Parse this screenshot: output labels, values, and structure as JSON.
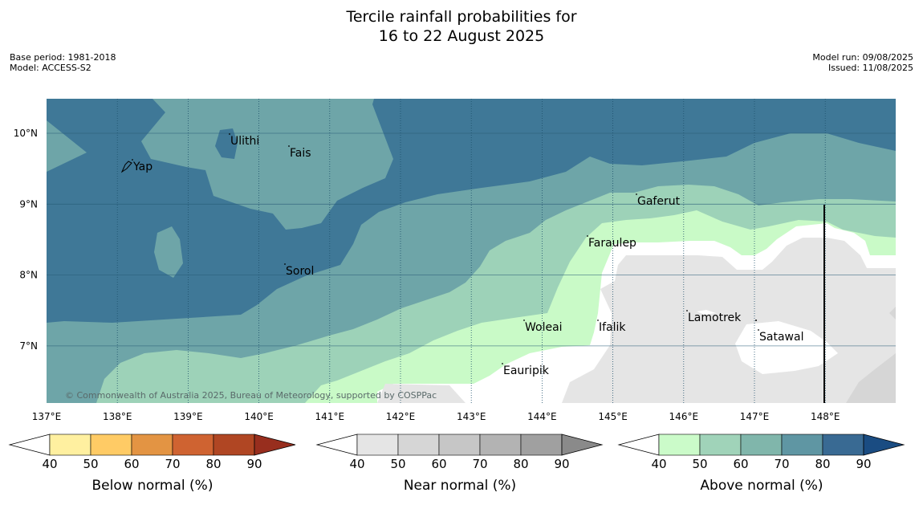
{
  "title": {
    "line1": "Tercile rainfall probabilities for",
    "line2": "16 to 22 August 2025"
  },
  "meta_left": {
    "base_period": "Base period: 1981-2018",
    "model": "Model: ACCESS-S2"
  },
  "meta_right": {
    "model_run": "Model run: 09/08/2025",
    "issued": "Issued: 11/08/2025"
  },
  "map": {
    "lat_labels": [
      "10°N",
      "9°N",
      "8°N",
      "7°N"
    ],
    "lon_labels": [
      "137°E",
      "138°E",
      "139°E",
      "140°E",
      "141°E",
      "142°E",
      "143°E",
      "144°E",
      "145°E",
      "146°E",
      "147°E",
      "148°E"
    ],
    "places": [
      "Ulithi",
      "Fais",
      "Yap",
      "Gaferut",
      "Faraulep",
      "Sorol",
      "Lamotrek",
      "Woleai",
      "Ifalik",
      "Satawal",
      "Eauripik"
    ],
    "copyright": "© Commonwealth of Australia 2025, Bureau of Meteorology, supported by COSPPac"
  },
  "colorbars": [
    {
      "label": "Below normal (%)",
      "ticks": [
        "40",
        "50",
        "60",
        "70",
        "80",
        "90"
      ],
      "colors": [
        "#fff0a0",
        "#ffcb65",
        "#e39443",
        "#cf6331",
        "#b04623",
        "#982e1e"
      ]
    },
    {
      "label": "Near normal (%)",
      "ticks": [
        "40",
        "50",
        "60",
        "70",
        "80",
        "90"
      ],
      "colors": [
        "#e5e5e5",
        "#d6d6d6",
        "#c6c6c6",
        "#b3b3b3",
        "#a0a0a0",
        "#8a8a8a"
      ]
    },
    {
      "label": "Above normal (%)",
      "ticks": [
        "40",
        "50",
        "60",
        "70",
        "80",
        "90"
      ],
      "colors": [
        "#cbfbc9",
        "#a0d3b9",
        "#80b6ab",
        "#5f96a3",
        "#396a93",
        "#1a4c82"
      ]
    }
  ]
}
